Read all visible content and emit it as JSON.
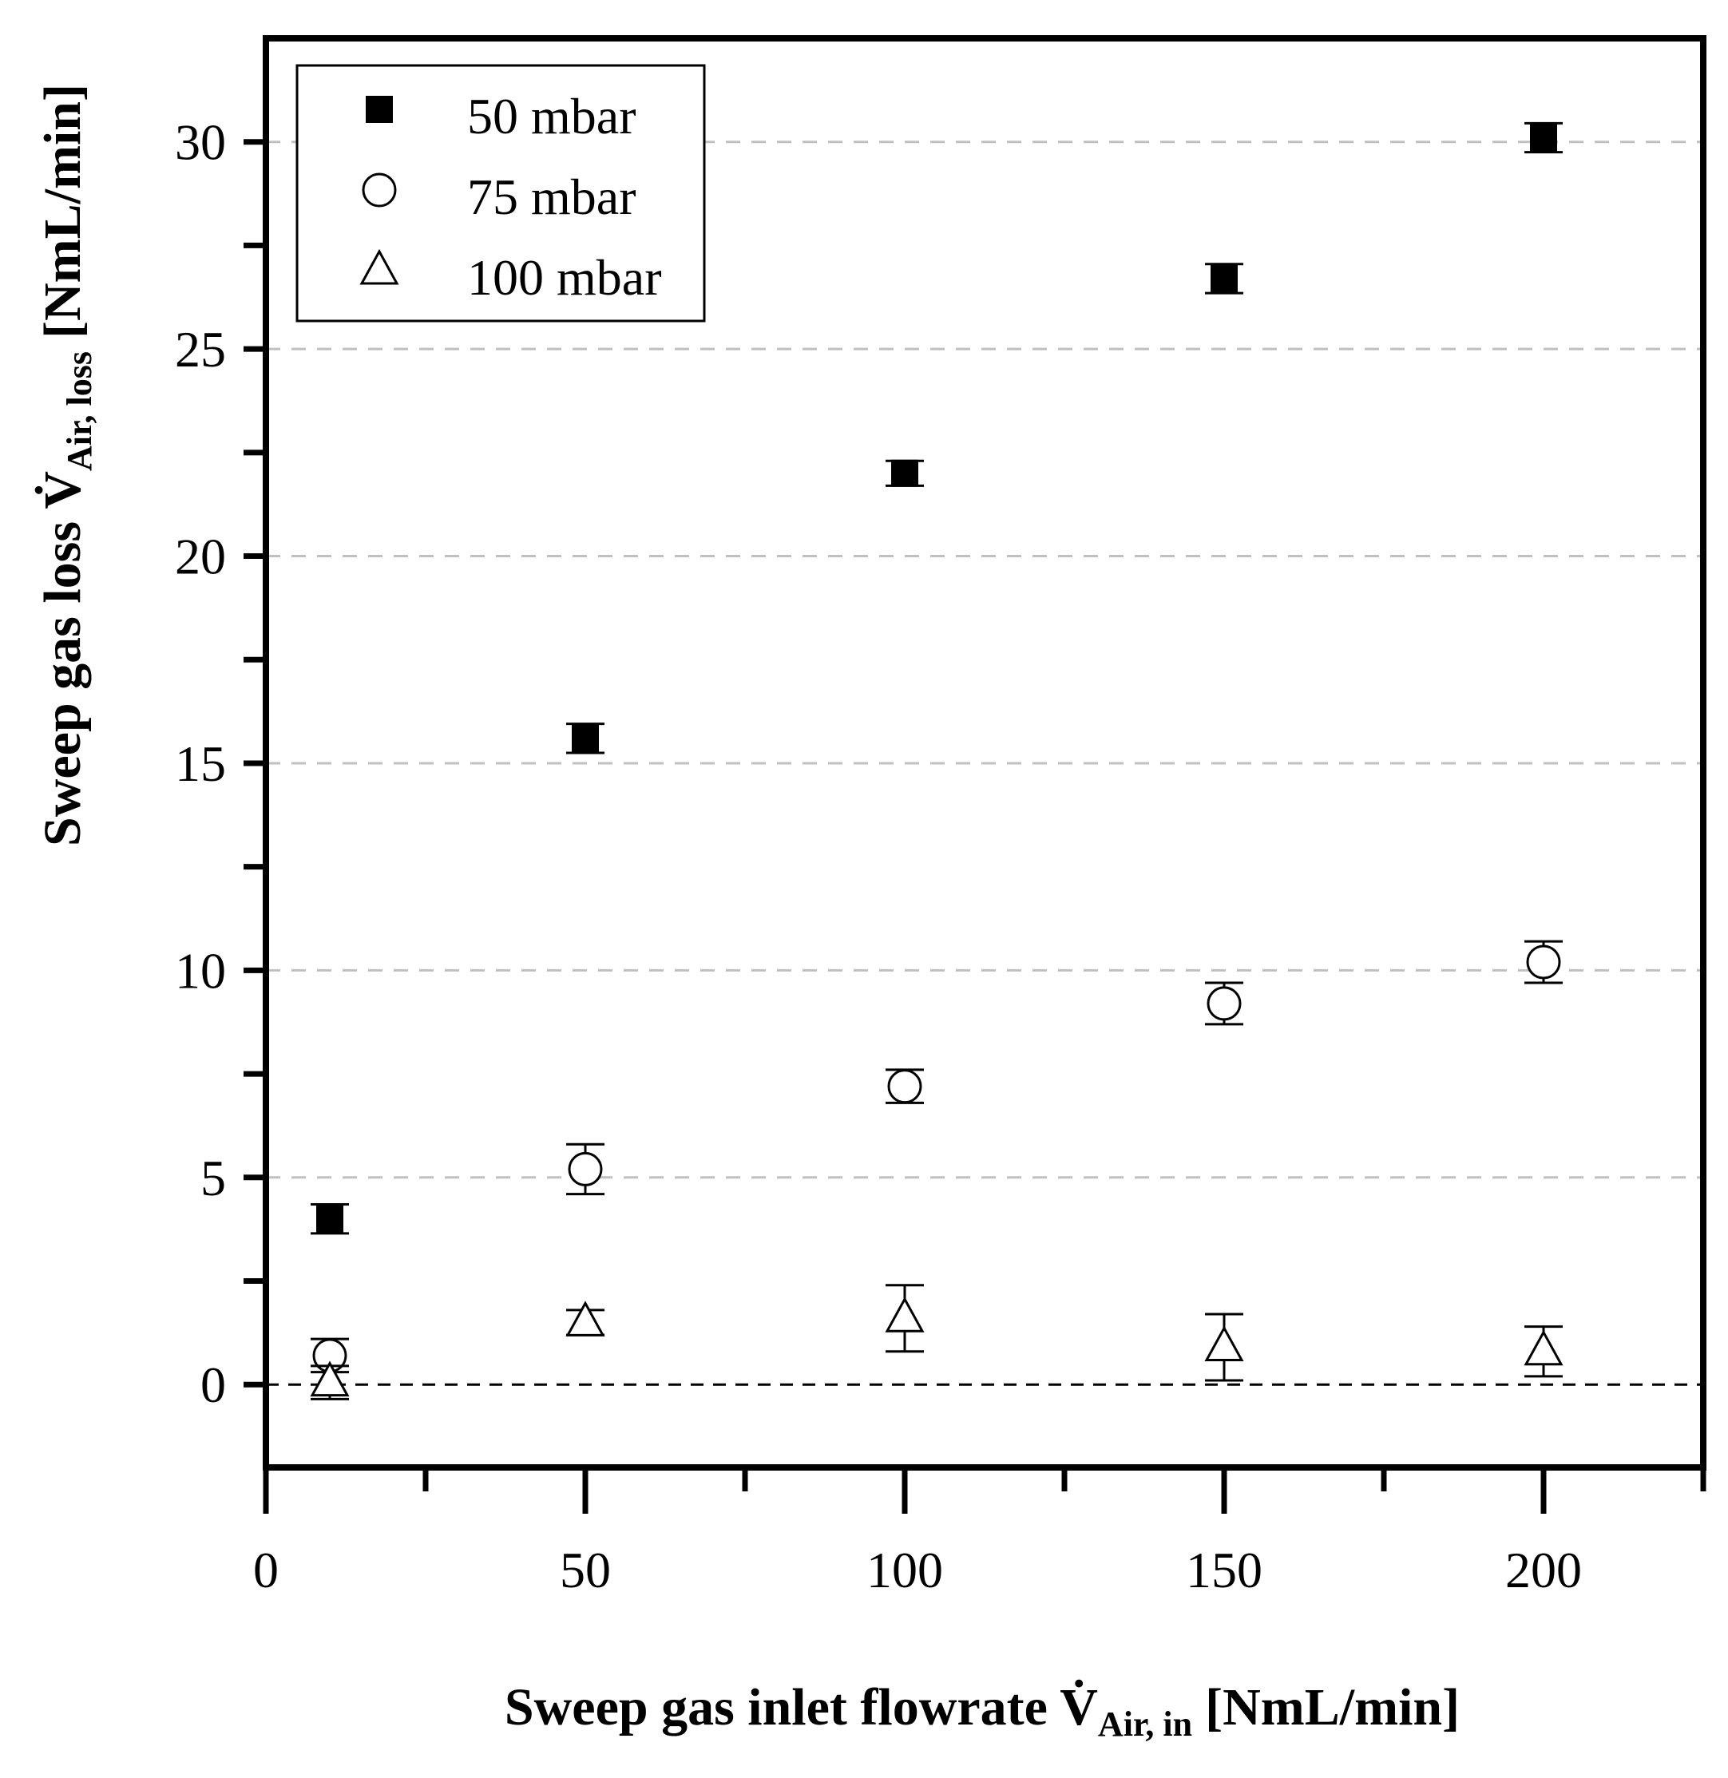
{
  "chart_data": {
    "type": "scatter",
    "xlim": [
      0,
      225
    ],
    "ylim": [
      -2,
      32.5
    ],
    "x_ticks": [
      0,
      50,
      100,
      150,
      200
    ],
    "x_minor_ticks": [
      25,
      75,
      125,
      175,
      225
    ],
    "y_ticks": [
      0,
      5,
      10,
      15,
      20,
      25,
      30
    ],
    "y_minor_ticks": [
      2.5,
      7.5,
      12.5,
      17.5,
      22.5,
      27.5
    ],
    "x_tick_labels": [
      "0",
      "50",
      "100",
      "150",
      "200"
    ],
    "y_tick_labels": [
      "0",
      "5",
      "10",
      "15",
      "20",
      "25",
      "30"
    ],
    "gridlines_y": [
      5,
      10,
      15,
      20,
      25,
      30
    ],
    "zero_line": 0,
    "xlabel": {
      "main": "Sweep gas inlet flowrate V̇",
      "subscript": "Air, in",
      "unit": "[NmL/min]"
    },
    "ylabel": {
      "main": "Sweep gas loss V̇",
      "subscript": "Air, loss",
      "unit": "[NmL/min]"
    },
    "legend": {
      "position": "top-left",
      "entries": [
        {
          "label": "50 mbar",
          "marker": "filled-square"
        },
        {
          "label": "75 mbar",
          "marker": "open-circle"
        },
        {
          "label": "100 mbar",
          "marker": "open-triangle"
        }
      ]
    },
    "series": [
      {
        "name": "50 mbar",
        "marker": "filled-square",
        "x": [
          10,
          50,
          100,
          150,
          200
        ],
        "y": [
          4.0,
          15.6,
          22.0,
          26.7,
          30.1
        ],
        "err": [
          0.35,
          0.35,
          0.3,
          0.35,
          0.35
        ]
      },
      {
        "name": "75 mbar",
        "marker": "open-circle",
        "x": [
          10,
          50,
          100,
          150,
          200
        ],
        "y": [
          0.7,
          5.2,
          7.2,
          9.2,
          10.2
        ],
        "err": [
          0.4,
          0.6,
          0.4,
          0.5,
          0.5
        ]
      },
      {
        "name": "100 mbar",
        "marker": "open-triangle",
        "x": [
          10,
          50,
          100,
          150,
          200
        ],
        "y": [
          0.05,
          1.5,
          1.6,
          0.9,
          0.8
        ],
        "err": [
          0.4,
          0.3,
          0.8,
          0.8,
          0.6
        ]
      }
    ]
  },
  "colors": {
    "axis": "#000000",
    "grid": "#c0c0c0",
    "marker": "#000000"
  }
}
